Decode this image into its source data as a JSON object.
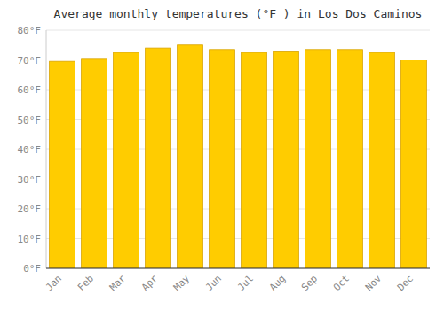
{
  "chart_data": {
    "type": "bar",
    "title": "Average monthly temperatures (°F ) in Los Dos Caminos",
    "categories": [
      "Jan",
      "Feb",
      "Mar",
      "Apr",
      "May",
      "Jun",
      "Jul",
      "Aug",
      "Sep",
      "Oct",
      "Nov",
      "Dec"
    ],
    "values": [
      69.5,
      70.5,
      72.5,
      74.0,
      75.0,
      73.5,
      72.5,
      73.0,
      73.5,
      73.5,
      72.5,
      70.0
    ],
    "color": "#FFCC00",
    "ylim": [
      0,
      80
    ],
    "yticks": [
      {
        "value": 0,
        "label": "0°F"
      },
      {
        "value": 10,
        "label": "10°F"
      },
      {
        "value": 20,
        "label": "20°F"
      },
      {
        "value": 30,
        "label": "30°F"
      },
      {
        "value": 40,
        "label": "40°F"
      },
      {
        "value": 50,
        "label": "50°F"
      },
      {
        "value": 60,
        "label": "60°F"
      },
      {
        "value": 70,
        "label": "70°F"
      },
      {
        "value": 80,
        "label": "80°F"
      }
    ],
    "grid": true
  }
}
